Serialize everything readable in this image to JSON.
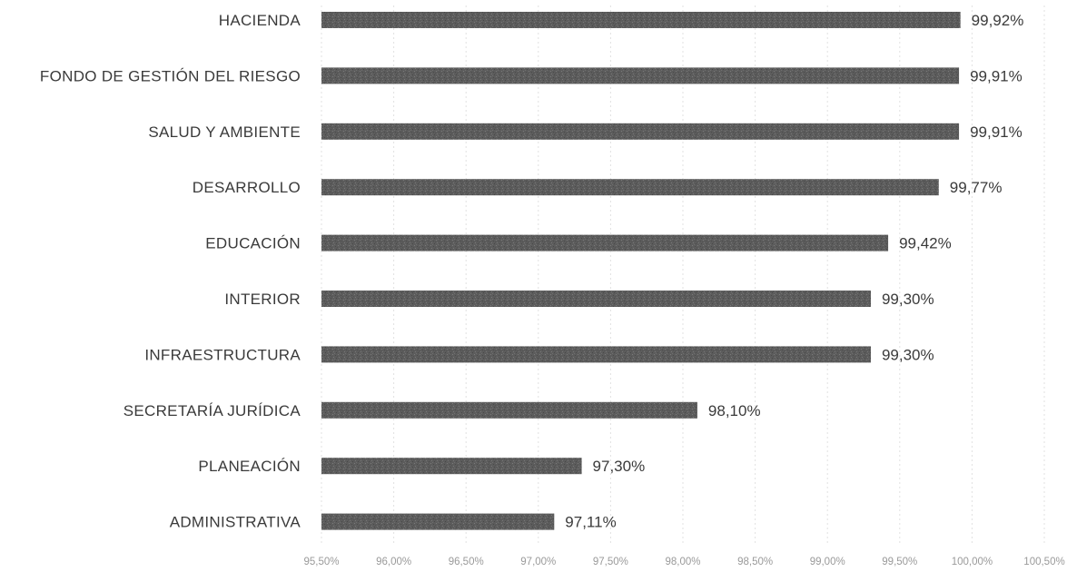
{
  "chart_data": {
    "type": "bar",
    "orientation": "horizontal",
    "title": "",
    "xlabel": "",
    "ylabel": "",
    "categories": [
      "HACIENDA",
      "FONDO DE GESTIÓN DEL RIESGO",
      "SALUD Y AMBIENTE",
      "DESARROLLO",
      "EDUCACIÓN",
      "INTERIOR",
      "INFRAESTRUCTURA",
      "SECRETARÍA JURÍDICA",
      "PLANEACIÓN",
      "ADMINISTRATIVA"
    ],
    "values": [
      99.92,
      99.91,
      99.91,
      99.77,
      99.42,
      99.3,
      99.3,
      98.1,
      97.3,
      97.11
    ],
    "value_labels": [
      "99,92%",
      "99,91%",
      "99,91%",
      "99,77%",
      "99,42%",
      "99,30%",
      "99,30%",
      "98,10%",
      "97,30%",
      "97,11%"
    ],
    "xlim": [
      95.5,
      100.5
    ],
    "xticks": [
      95.5,
      96.0,
      96.5,
      97.0,
      97.5,
      98.0,
      98.5,
      99.0,
      99.5,
      100.0,
      100.5
    ],
    "xtick_labels": [
      "95,50%",
      "96,00%",
      "96,50%",
      "97,00%",
      "97,50%",
      "98,00%",
      "98,50%",
      "99,00%",
      "99,50%",
      "100,00%",
      "100,50%"
    ],
    "grid": true,
    "legend": "none",
    "colors": {
      "bar": "#5a5a5a",
      "text": "#3a3a3a",
      "tick_text": "#9a9a9a",
      "grid": "#e2e2e2"
    }
  }
}
